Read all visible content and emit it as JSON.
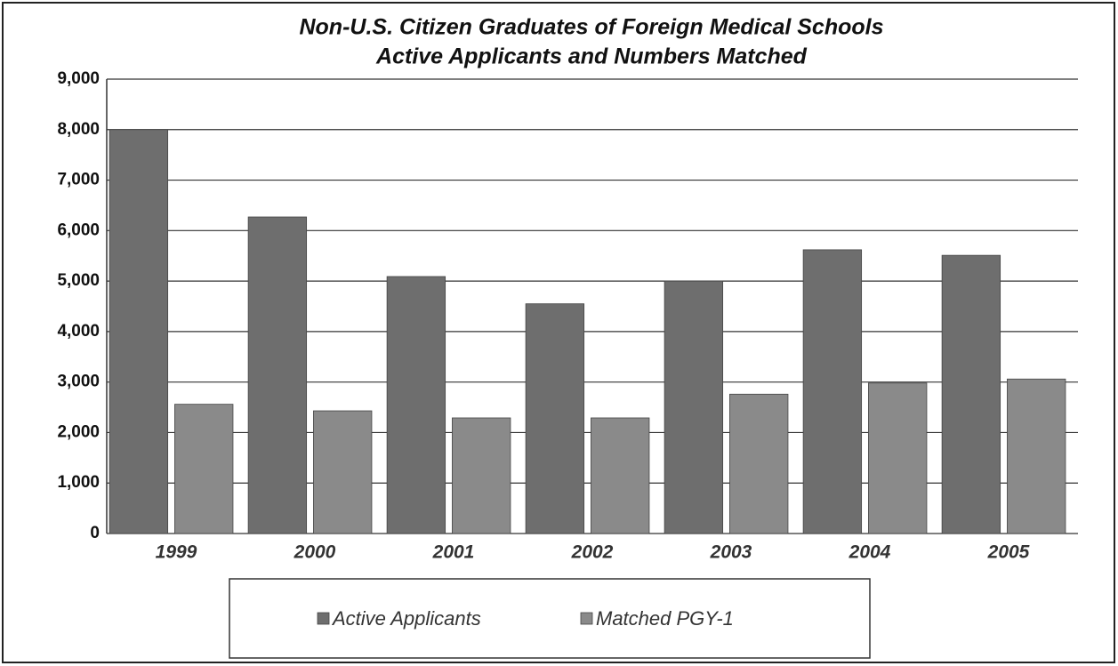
{
  "chart_data": {
    "type": "bar",
    "title": "Non-U.S. Citizen Graduates of Foreign Medical Schools",
    "subtitle": "Active Applicants and Numbers Matched",
    "categories": [
      "1999",
      "2000",
      "2001",
      "2002",
      "2003",
      "2004",
      "2005"
    ],
    "series": [
      {
        "name": "Active Applicants",
        "color": "#6e6e6e",
        "values": [
          8000,
          6270,
          5090,
          4550,
          5000,
          5620,
          5510
        ]
      },
      {
        "name": "Matched PGY-1",
        "color": "#8a8a8a",
        "values": [
          2560,
          2430,
          2290,
          2290,
          2760,
          2980,
          3060
        ]
      }
    ],
    "ylim": [
      0,
      9000
    ],
    "yticks": [
      {
        "value": 0,
        "label": "0"
      },
      {
        "value": 1000,
        "label": "1,000"
      },
      {
        "value": 2000,
        "label": "2,000"
      },
      {
        "value": 3000,
        "label": "3,000"
      },
      {
        "value": 4000,
        "label": "4,000"
      },
      {
        "value": 5000,
        "label": "5,000"
      },
      {
        "value": 6000,
        "label": "6,000"
      },
      {
        "value": 7000,
        "label": "7,000"
      },
      {
        "value": 8000,
        "label": "8,000"
      },
      {
        "value": 9000,
        "label": "9,000"
      }
    ],
    "grid": true,
    "legend": "bottom"
  }
}
